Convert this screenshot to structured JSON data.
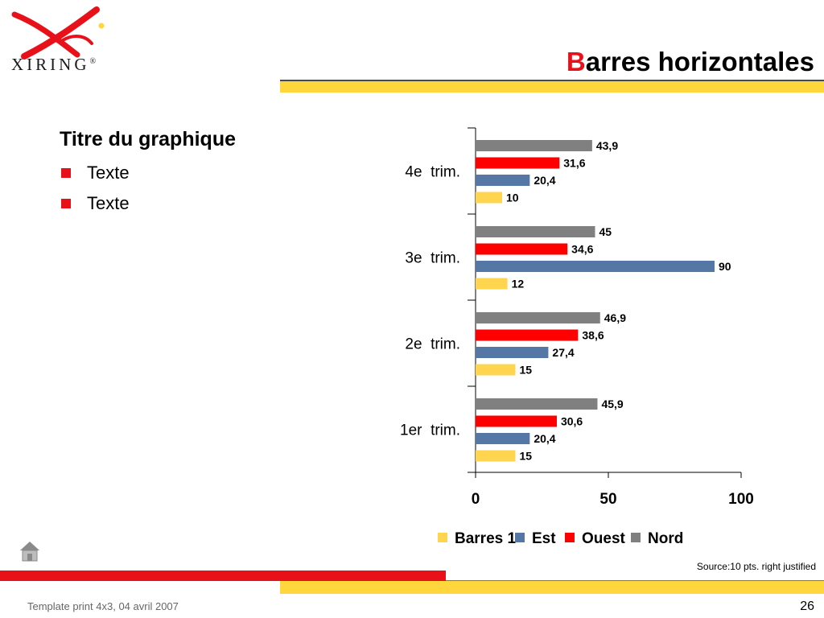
{
  "brand": {
    "name": "XIRING",
    "reg_mark": "®"
  },
  "slide": {
    "title_first_letter": "B",
    "title_rest": "arres horizontales",
    "left_heading": "Titre du graphique",
    "bullets": [
      "Texte",
      "Texte"
    ],
    "source_note": "Source:10 pts. right justified",
    "footer_left": "Template print 4x3, 04 avril 2007",
    "page_number": "26"
  },
  "colors": {
    "accent_red": "#e8111a",
    "accent_yellow": "#ffd73c",
    "series_nord": "#808080",
    "series_ouest": "#ff0000",
    "series_est": "#5577a6",
    "series_barres1": "#ffd54f"
  },
  "icons": {
    "home": "home-icon"
  },
  "chart_data": {
    "type": "bar",
    "orientation": "horizontal",
    "categories": [
      "1er  trim.",
      "2e  trim.",
      "3e  trim.",
      "4e  trim."
    ],
    "series": [
      {
        "name": "Barres 1",
        "color": "#ffd54f",
        "values": [
          15,
          15,
          12,
          10
        ],
        "labels": [
          "15",
          "15",
          "12",
          "10"
        ]
      },
      {
        "name": "Est",
        "color": "#5577a6",
        "values": [
          20.4,
          27.4,
          90,
          20.4
        ],
        "labels": [
          "20,4",
          "27,4",
          "90",
          "20,4"
        ]
      },
      {
        "name": "Ouest",
        "color": "#ff0000",
        "values": [
          30.6,
          38.6,
          34.6,
          31.6
        ],
        "labels": [
          "30,6",
          "38,6",
          "34,6",
          "31,6"
        ]
      },
      {
        "name": "Nord",
        "color": "#808080",
        "values": [
          45.9,
          46.9,
          45,
          43.9
        ],
        "labels": [
          "45,9",
          "46,9",
          "45",
          "43,9"
        ]
      }
    ],
    "xlim": [
      0,
      100
    ],
    "x_ticks": [
      0,
      50,
      100
    ],
    "x_tick_labels": [
      "0",
      "50",
      "100"
    ],
    "legend_position": "bottom",
    "grid": false
  }
}
